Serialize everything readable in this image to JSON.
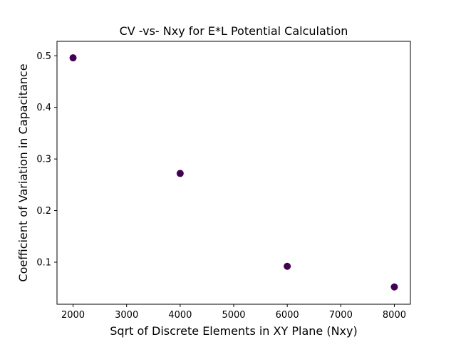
{
  "chart_data": {
    "type": "scatter",
    "title": "CV -vs- Nxy for E*L Potential Calculation",
    "xlabel": "Sqrt of Discrete Elements in XY Plane (Nxy)",
    "ylabel": "Coefficient of Variation in Capacitance",
    "xlim": [
      1700,
      8300
    ],
    "ylim": [
      0.0185,
      0.528
    ],
    "x_ticks": [
      2000,
      3000,
      4000,
      5000,
      6000,
      7000,
      8000
    ],
    "x_tick_labels": [
      "2000",
      "3000",
      "4000",
      "5000",
      "6000",
      "7000",
      "8000"
    ],
    "y_ticks": [
      0.1,
      0.2,
      0.3,
      0.4,
      0.5
    ],
    "y_tick_labels": [
      "0.1",
      "0.2",
      "0.3",
      "0.4",
      "0.5"
    ],
    "grid": false,
    "marker_color": "#440154",
    "series": [
      {
        "x": [
          2000,
          4000,
          6000,
          8000
        ],
        "y": [
          0.496,
          0.272,
          0.092,
          0.052
        ]
      }
    ]
  }
}
